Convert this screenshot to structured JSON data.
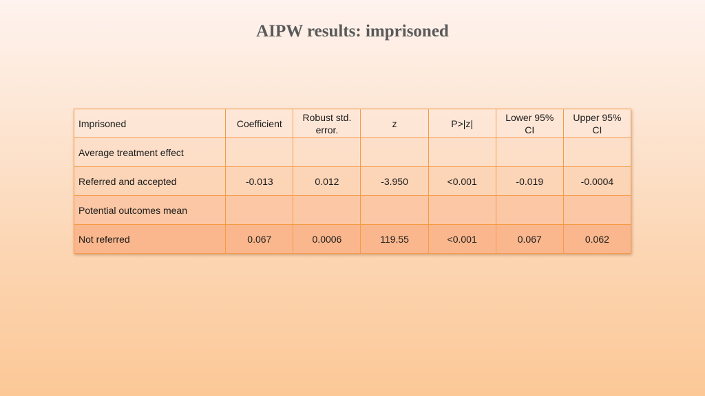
{
  "slide": {
    "title": "AIPW results: imprisoned"
  },
  "table": {
    "headers": [
      "Imprisoned",
      "Coefficient",
      "Robust std. error.",
      "z",
      "P>|z|",
      "Lower 95% CI",
      "Upper 95% CI"
    ],
    "rows": [
      [
        "Average treatment effect",
        "",
        "",
        "",
        "",
        "",
        ""
      ],
      [
        "Referred and accepted",
        "-0.013",
        "0.012",
        "-3.950",
        "<0.001",
        "-0.019",
        "-0.0004"
      ],
      [
        "Potential outcomes mean",
        "",
        "",
        "",
        "",
        "",
        ""
      ],
      [
        "Not referred",
        "0.067",
        "0.0006",
        "119.55",
        "<0.001",
        "0.067",
        "0.062"
      ]
    ]
  },
  "colors": {
    "border": "#f79a46",
    "title": "#595959"
  }
}
